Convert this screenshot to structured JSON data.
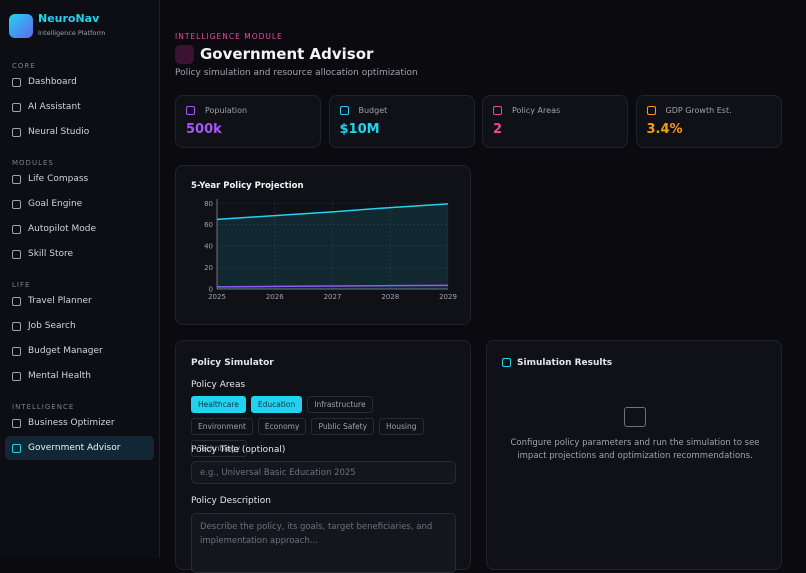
{
  "sidebar": {
    "brand": "NeuroNav",
    "tagline": "Intelligence Platform",
    "sections": [
      {
        "title": "CORE",
        "items": [
          {
            "label": "Dashboard"
          },
          {
            "label": "AI Assistant"
          },
          {
            "label": "Neural Studio"
          }
        ]
      },
      {
        "title": "MODULES",
        "items": [
          {
            "label": "Life Compass"
          },
          {
            "label": "Goal Engine"
          },
          {
            "label": "Autopilot Mode"
          },
          {
            "label": "Skill Store"
          }
        ]
      },
      {
        "title": "LIFE",
        "items": [
          {
            "label": "Travel Planner"
          },
          {
            "label": "Job Search"
          },
          {
            "label": "Budget Manager"
          },
          {
            "label": "Mental Health"
          }
        ]
      },
      {
        "title": "INTELLIGENCE",
        "items": [
          {
            "label": "Business Optimizer"
          },
          {
            "label": "Government Advisor",
            "active": true
          }
        ]
      }
    ]
  },
  "header": {
    "eyebrow": "INTELLIGENCE MODULE",
    "title": "Government Advisor",
    "subtitle": "Policy simulation and resource allocation optimization"
  },
  "stats": [
    {
      "label": "Population",
      "value": "500k",
      "color": "#a855f7"
    },
    {
      "label": "Budget",
      "value": "$10M",
      "color": "#22d3ee"
    },
    {
      "label": "Policy Areas",
      "value": "2",
      "color": "#ec4899"
    },
    {
      "label": "GDP Growth Est.",
      "value": "3.4%",
      "color": "#f59e0b"
    }
  ],
  "chart_data": {
    "type": "line",
    "title": "5-Year Policy Projection",
    "categories": [
      "2025",
      "2026",
      "2027",
      "2028",
      "2029"
    ],
    "series": [
      {
        "color": "#22d3ee",
        "values": [
          65,
          68.5,
          72,
          76,
          79.5
        ],
        "area": true
      },
      {
        "color": "#8b5cf6",
        "values": [
          2,
          2.4,
          2.8,
          3.1,
          3.4
        ]
      }
    ],
    "ylim": [
      0,
      84
    ],
    "yticks": [
      0,
      20,
      40,
      60,
      80
    ],
    "grid": true
  },
  "simulator": {
    "title": "Policy Simulator",
    "areas_label": "Policy Areas",
    "chips": [
      {
        "label": "Healthcare",
        "selected": true
      },
      {
        "label": "Education",
        "selected": true
      },
      {
        "label": "Infrastructure"
      },
      {
        "label": "Environment"
      },
      {
        "label": "Economy"
      },
      {
        "label": "Public Safety"
      },
      {
        "label": "Housing"
      },
      {
        "label": "Technology"
      }
    ],
    "title_label": "Policy Title (optional)",
    "title_placeholder": "e.g., Universal Basic Education 2025",
    "description_label": "Policy Description",
    "description_placeholder": "Describe the policy, its goals, target beneficiaries, and implementation approach..."
  },
  "results": {
    "title": "Simulation Results",
    "message": "Configure policy parameters and run the simulation to see impact projections and optimization recommendations."
  }
}
